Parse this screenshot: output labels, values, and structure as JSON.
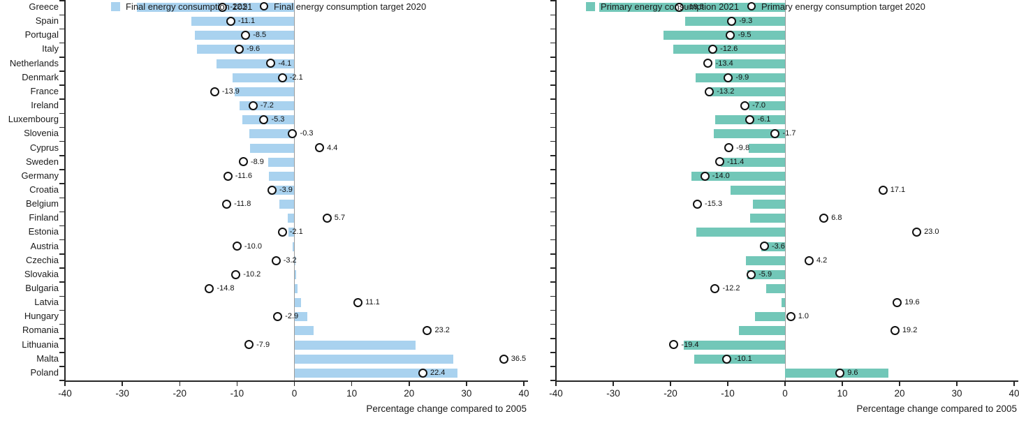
{
  "figure_name": "Energy consumption change vs 2005 by EU country, 2021 and 2020 targets",
  "categories": [
    "Greece",
    "Spain",
    "Portugal",
    "Italy",
    "Netherlands",
    "Denmark",
    "France",
    "Ireland",
    "Luxembourg",
    "Slovenia",
    "Cyprus",
    "Sweden",
    "Germany",
    "Croatia",
    "Belgium",
    "Finland",
    "Estonia",
    "Austria",
    "Czechia",
    "Slovakia",
    "Bulgaria",
    "Latvia",
    "Hungary",
    "Romania",
    "Lithuania",
    "Malta",
    "Poland"
  ],
  "colors": {
    "final_bar": "#a9d2ef",
    "primary_bar": "#72c7b8",
    "axis": "#262626",
    "zero_line": "#9b9b9b",
    "marker_stroke": "#111111",
    "text": "#1a1a1a"
  },
  "chart_data": [
    {
      "type": "bar",
      "orientation": "horizontal",
      "xlabel": "Percentage change compared to 2005",
      "xlim": [
        -40,
        40
      ],
      "xticks": [
        -40,
        -30,
        -20,
        -10,
        0,
        10,
        20,
        30,
        40
      ],
      "grid": false,
      "bar_color": "#a9d2ef",
      "series": [
        {
          "name": "Final energy consumption 2021",
          "type": "bar",
          "values": [
            -27.4,
            -17.9,
            -17.3,
            -17.0,
            -13.6,
            -10.8,
            -10.4,
            -9.5,
            -9.1,
            -7.9,
            -7.7,
            -4.6,
            -4.5,
            -4.3,
            -2.6,
            -1.1,
            -1.0,
            -0.3,
            0.1,
            0.3,
            0.5,
            1.1,
            2.3,
            3.3,
            21.1,
            27.7,
            28.4
          ]
        },
        {
          "name": "Final energy consumption target 2020",
          "type": "point",
          "values": [
            -12.5,
            -11.1,
            -8.5,
            -9.6,
            -4.1,
            -2.1,
            -13.9,
            -7.2,
            -5.3,
            -0.3,
            4.4,
            -8.9,
            -11.6,
            -3.9,
            -11.8,
            5.7,
            -2.1,
            -10.0,
            -3.2,
            -10.2,
            -14.8,
            11.1,
            -2.9,
            23.2,
            -7.9,
            36.5,
            22.4
          ]
        }
      ]
    },
    {
      "type": "bar",
      "orientation": "horizontal",
      "xlabel": "Percentage change compared to 2005",
      "xlim": [
        -40,
        40
      ],
      "xticks": [
        -40,
        -30,
        -20,
        -10,
        0,
        10,
        20,
        30,
        40
      ],
      "grid": false,
      "bar_color": "#72c7b8",
      "series": [
        {
          "name": "Primary energy consumption 2021",
          "type": "bar",
          "values": [
            -32.5,
            -17.4,
            -21.2,
            -19.5,
            -12.2,
            -15.6,
            -13.5,
            -6.4,
            -12.2,
            -12.5,
            -6.3,
            -11.2,
            -16.3,
            -9.5,
            -5.6,
            -6.1,
            -15.5,
            -4.2,
            -6.8,
            -6.6,
            -3.3,
            -0.6,
            -5.2,
            -8.1,
            -17.7,
            -15.9,
            18.1
          ]
        },
        {
          "name": "Primary energy consumption target 2020",
          "type": "point",
          "values": [
            -18.5,
            -9.3,
            -9.5,
            -12.6,
            -13.4,
            -9.9,
            -13.2,
            -7.0,
            -6.1,
            -1.7,
            -9.8,
            -11.4,
            -14.0,
            17.1,
            -15.3,
            6.8,
            23.0,
            -3.6,
            4.2,
            -5.9,
            -12.2,
            19.6,
            1.0,
            19.2,
            -19.4,
            -10.1,
            9.6
          ]
        }
      ]
    }
  ]
}
